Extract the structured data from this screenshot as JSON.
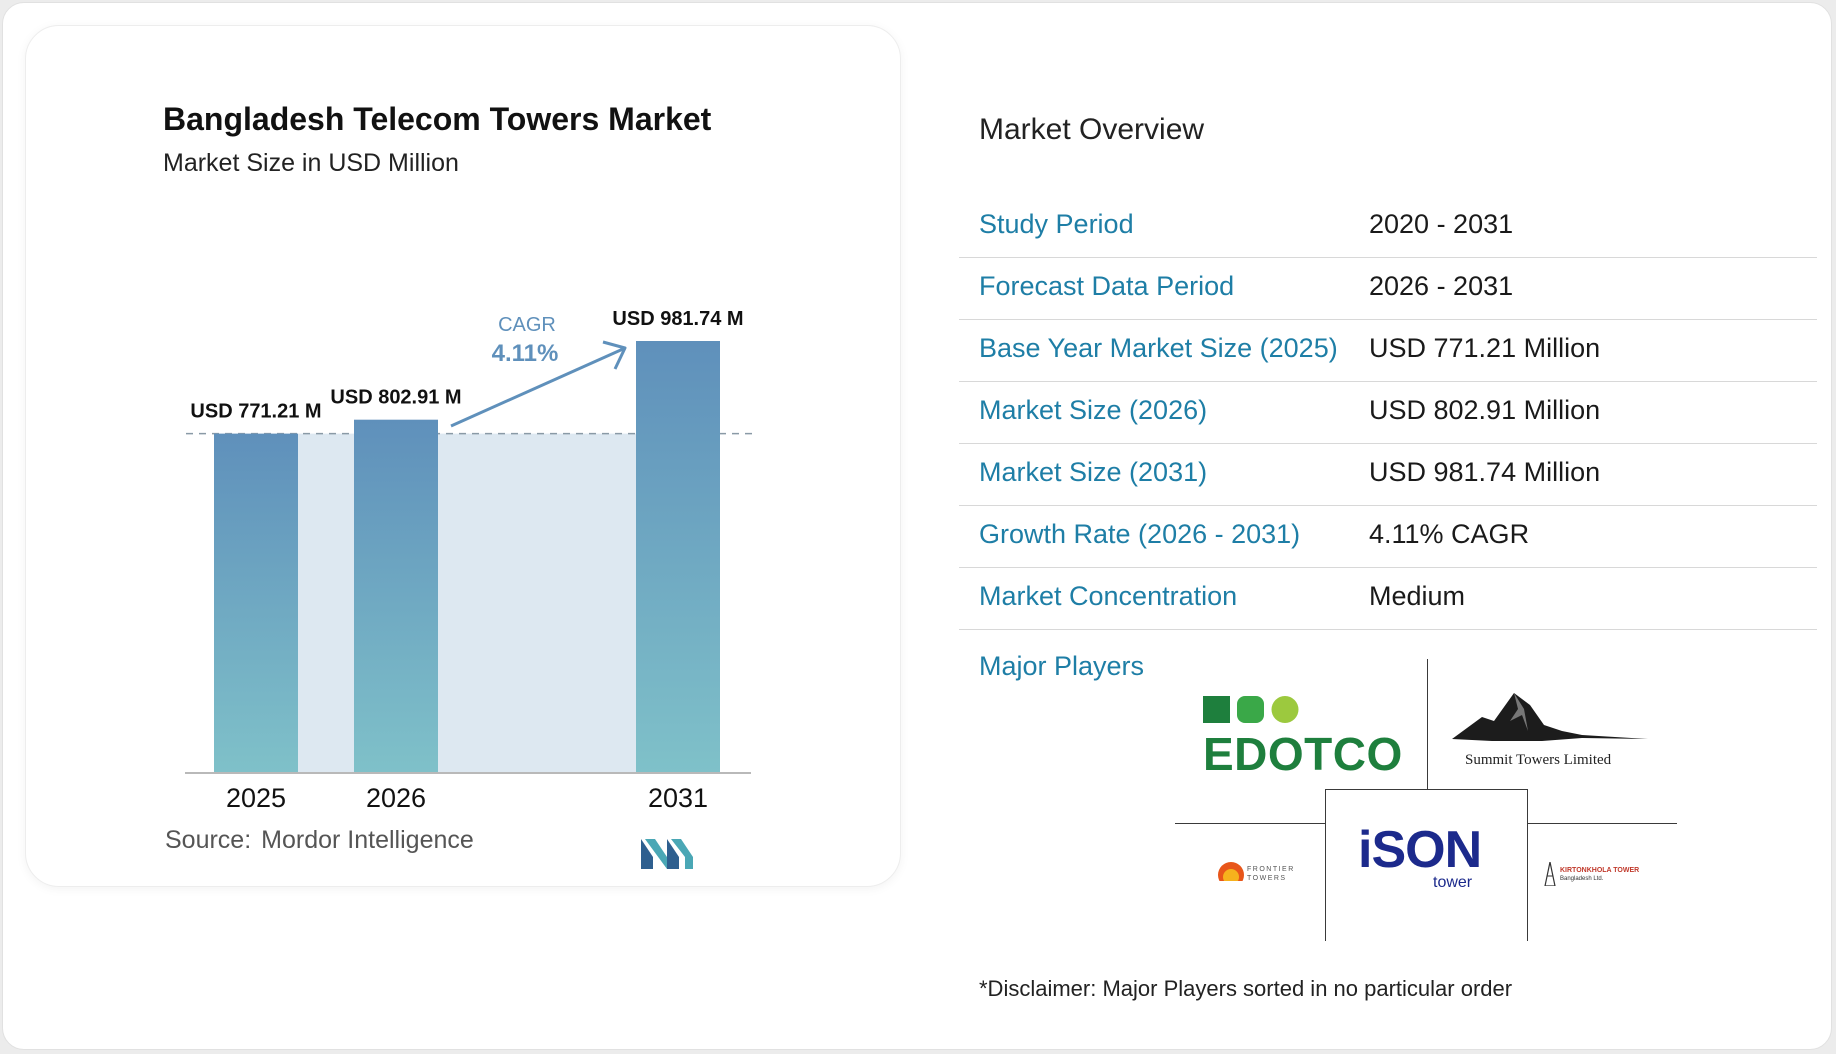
{
  "chart_data": {
    "type": "bar",
    "title": "Bangladesh Telecom Towers Market",
    "subtitle": "Market Size in USD Million",
    "categories": [
      "2025",
      "2026",
      "2031"
    ],
    "values": [
      771.21,
      802.91,
      981.74
    ],
    "value_labels": [
      "USD 771.21 M",
      "USD 802.91 M",
      "USD 981.74 M"
    ],
    "cagr_label": "CAGR",
    "cagr_value": "4.11%",
    "ylim": [
      0,
      1150
    ],
    "grid": false,
    "source_label": "Source:",
    "source_name": "Mordor Intelligence",
    "colors": {
      "bar_top": "#5f90bb",
      "bar_bottom": "#7fc1c9",
      "band": "#dde8f1",
      "arrow": "#5f90bb",
      "baseline": "#b9b9b9"
    }
  },
  "overview": {
    "title": "Market Overview",
    "rows": [
      {
        "key": "Study Period",
        "value": "2020 - 2031"
      },
      {
        "key": "Forecast Data Period",
        "value": "2026 - 2031"
      },
      {
        "key": "Base Year Market Size (2025)",
        "value": "USD 771.21 Million"
      },
      {
        "key": "Market Size (2026)",
        "value": "USD 802.91 Million"
      },
      {
        "key": "Market Size (2031)",
        "value": "USD 981.74 Million"
      },
      {
        "key": "Growth Rate (2026 - 2031)",
        "value": "4.11% CAGR"
      },
      {
        "key": "Market Concentration",
        "value": "Medium"
      }
    ],
    "players_label": "Major Players",
    "players": {
      "edotco": "EDOTCO",
      "summit": "Summit Towers Limited",
      "frontier_line1": "FRONTIER",
      "frontier_line2": "TOWERS",
      "ison": "iSON",
      "ison_sub": "tower",
      "kirton_line1": "KIRTONKHOLA TOWER",
      "kirton_line2": "Bangladesh Ltd."
    },
    "disclaimer": "*Disclaimer: Major Players sorted in no particular order"
  },
  "accent": "#1e7ea6"
}
